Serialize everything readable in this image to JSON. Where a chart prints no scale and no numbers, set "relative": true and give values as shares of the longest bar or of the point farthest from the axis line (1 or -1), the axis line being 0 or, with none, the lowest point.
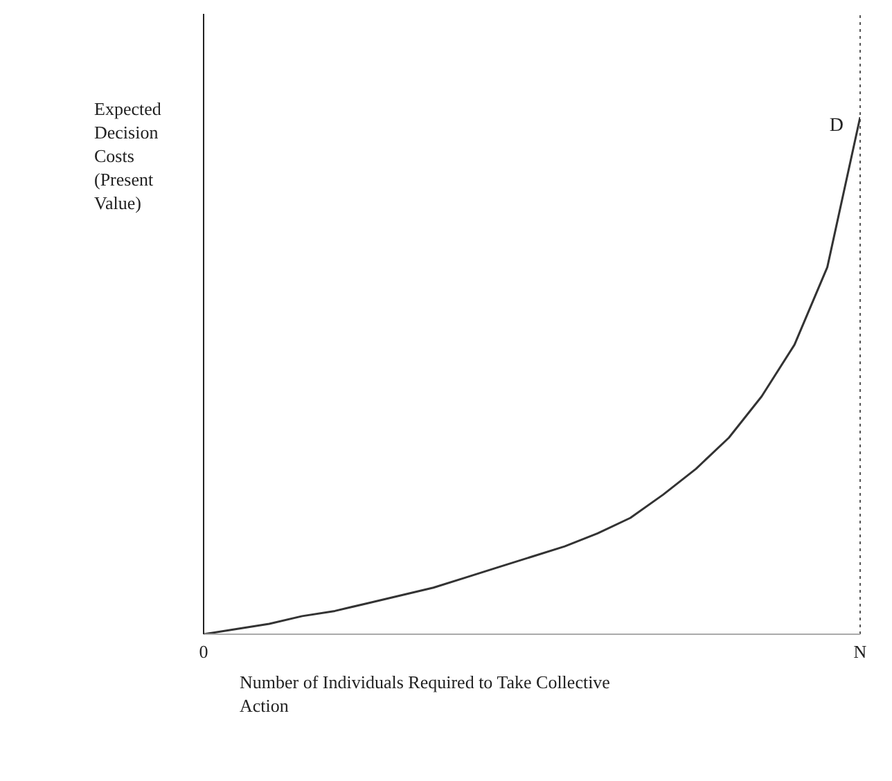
{
  "chart_data": {
    "type": "line",
    "relative": true,
    "xlabel": "Number of Individuals Required to Take Collective Action",
    "ylabel": "Expected Decision Costs (Present Value)",
    "categories": [
      "0",
      null,
      null,
      null,
      null,
      null,
      null,
      null,
      null,
      null,
      null,
      null,
      null,
      null,
      null,
      null,
      null,
      null,
      null,
      null,
      "N"
    ],
    "ref_lines": [
      {
        "axis": "x",
        "value": "N",
        "label": null,
        "color": "#555555",
        "line_style": "dotted"
      }
    ],
    "series": [
      {
        "name": "D",
        "color": "#333333",
        "values": [
          0,
          0.01,
          0.02,
          0.035,
          0.045,
          0.06,
          0.075,
          0.09,
          0.11,
          0.13,
          0.15,
          0.17,
          0.195,
          0.225,
          0.27,
          0.32,
          0.38,
          0.46,
          0.56,
          0.71,
          1.0
        ]
      }
    ]
  }
}
